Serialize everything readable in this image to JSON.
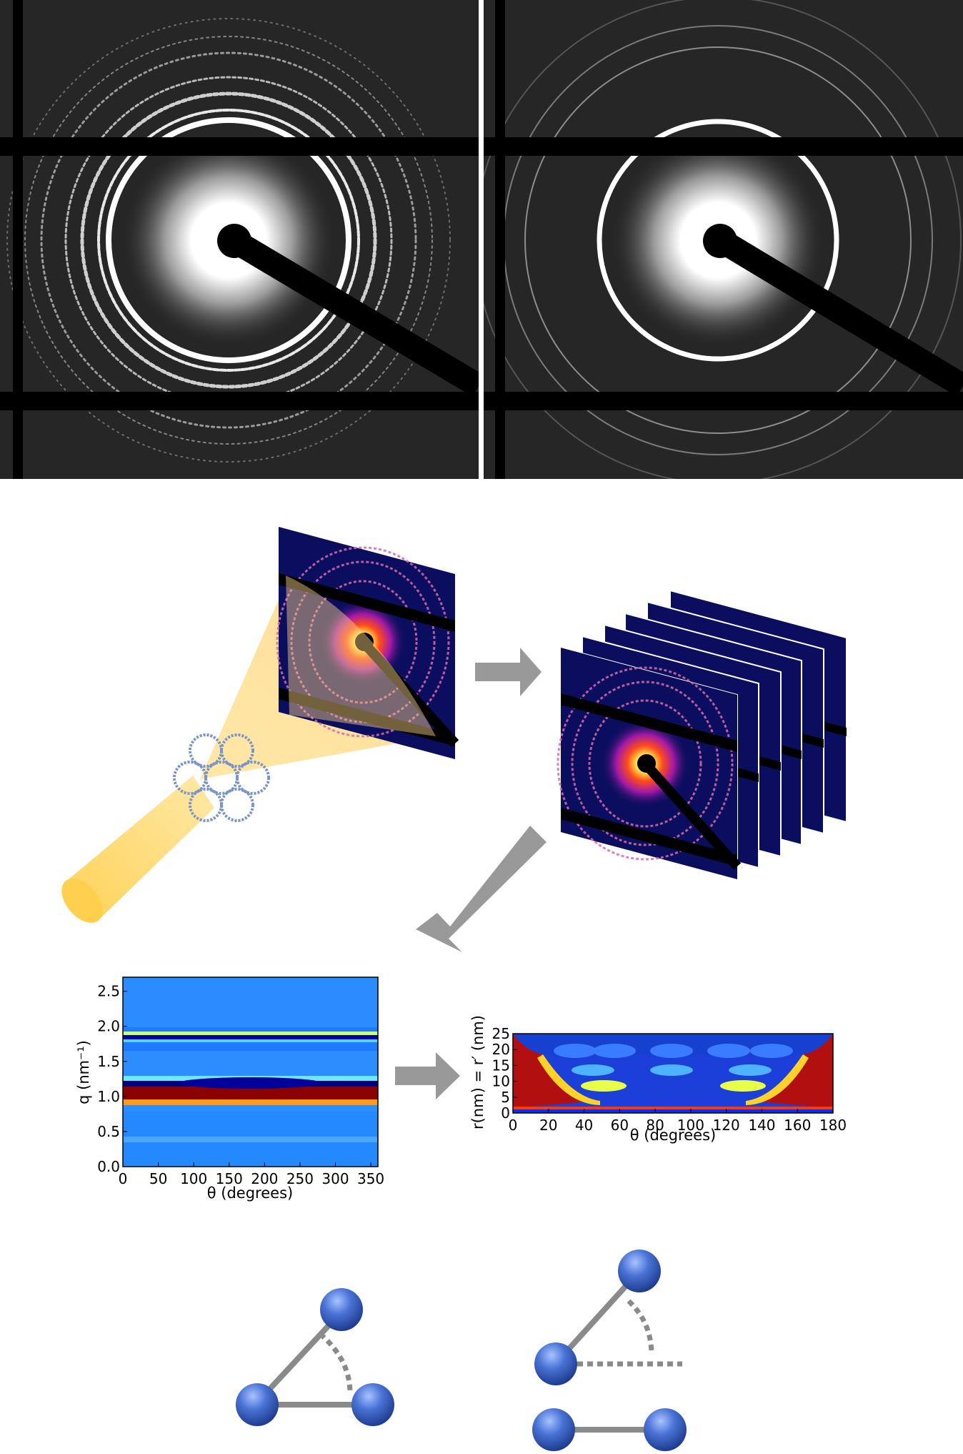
{
  "panels": {
    "diffraction_left": {
      "name": "diffraction-pattern-left"
    },
    "diffraction_right": {
      "name": "diffraction-pattern-right"
    }
  },
  "colors": {
    "beam": "#ffd66b",
    "arrow": "#999999",
    "detector_bg": "#0b0e5e",
    "sphere": "#3c64c8",
    "bond": "#8a8a8a"
  },
  "chart_data": [
    {
      "type": "heatmap",
      "title": "",
      "xlabel": "θ (degrees)",
      "ylabel": "q (nm⁻¹)",
      "xlim": [
        0,
        360
      ],
      "ylim": [
        0.0,
        2.7
      ],
      "x_ticks": [
        "0",
        "50",
        "100",
        "150",
        "200",
        "250",
        "300",
        "350"
      ],
      "x_tick_values": [
        0,
        50,
        100,
        150,
        200,
        250,
        300,
        350
      ],
      "y_ticks": [
        "0.0",
        "0.5",
        "1.0",
        "1.5",
        "2.0",
        "2.5"
      ],
      "y_tick_values": [
        0.0,
        0.5,
        1.0,
        1.5,
        2.0,
        2.5
      ],
      "bands": [
        {
          "q_center": 1.0,
          "q_width": 0.12,
          "level": "high"
        },
        {
          "q_center": 1.78,
          "q_width": 0.08,
          "level": "medium"
        }
      ]
    },
    {
      "type": "heatmap",
      "title": "",
      "xlabel": "θ (degrees)",
      "ylabel": "r(nm) = r′ (nm)",
      "xlim": [
        0,
        180
      ],
      "ylim": [
        0,
        25
      ],
      "x_ticks": [
        "0",
        "20",
        "40",
        "60",
        "80",
        "100",
        "120",
        "140",
        "160",
        "180"
      ],
      "x_tick_values": [
        0,
        20,
        40,
        60,
        80,
        100,
        120,
        140,
        160,
        180
      ],
      "y_ticks": [
        "0",
        "5",
        "10",
        "15",
        "20",
        "25"
      ],
      "y_tick_values": [
        0,
        5,
        10,
        15,
        20,
        25
      ]
    }
  ]
}
